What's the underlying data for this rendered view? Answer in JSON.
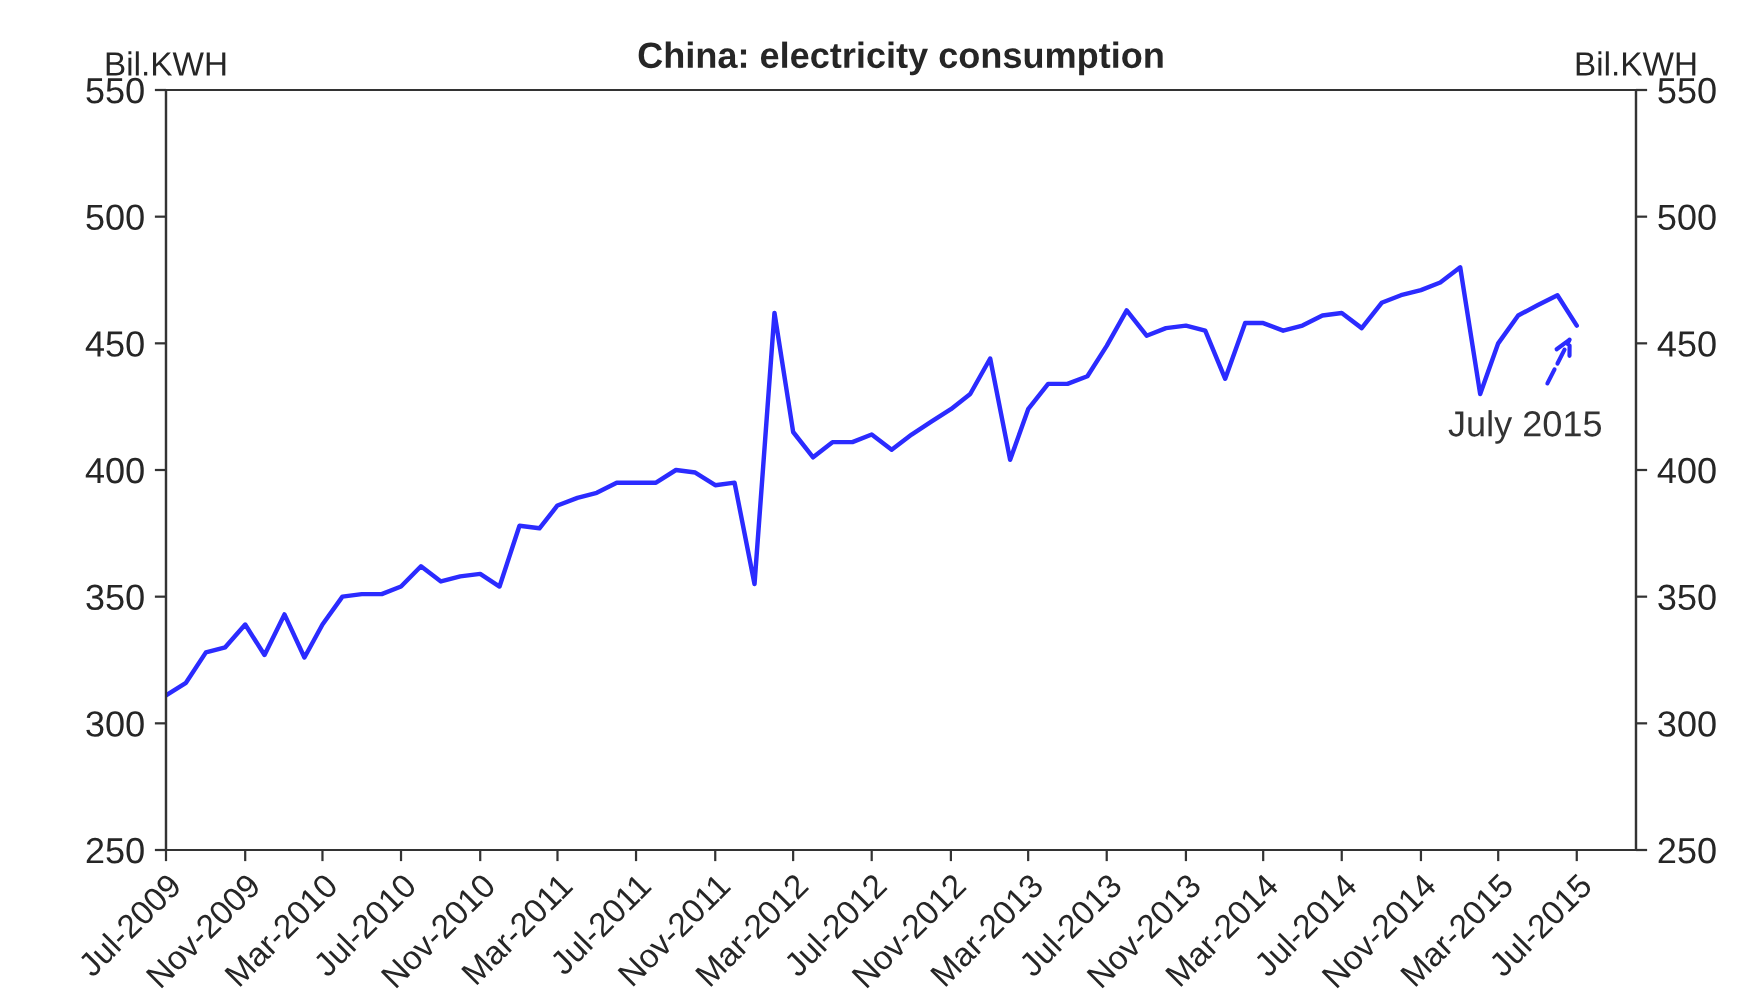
{
  "chart_data": {
    "type": "line",
    "title": "China: electricity consumption",
    "ylabel": "Bil.KWH",
    "y2label": "Bil.KWH",
    "x": [
      "2009-07",
      "2009-08",
      "2009-09",
      "2009-10",
      "2009-11",
      "2009-12",
      "2010-01",
      "2010-02",
      "2010-03",
      "2010-04",
      "2010-05",
      "2010-06",
      "2010-07",
      "2010-08",
      "2010-09",
      "2010-10",
      "2010-11",
      "2010-12",
      "2011-01",
      "2011-02",
      "2011-03",
      "2011-04",
      "2011-05",
      "2011-06",
      "2011-07",
      "2011-08",
      "2011-09",
      "2011-10",
      "2011-11",
      "2011-12",
      "2012-01",
      "2012-02",
      "2012-03",
      "2012-04",
      "2012-05",
      "2012-06",
      "2012-07",
      "2012-08",
      "2012-09",
      "2012-10",
      "2012-11",
      "2012-12",
      "2013-01",
      "2013-02",
      "2013-03",
      "2013-04",
      "2013-05",
      "2013-06",
      "2013-07",
      "2013-08",
      "2013-09",
      "2013-10",
      "2013-11",
      "2013-12",
      "2014-01",
      "2014-02",
      "2014-03",
      "2014-04",
      "2014-05",
      "2014-06",
      "2014-07",
      "2014-08",
      "2014-09",
      "2014-10",
      "2014-11",
      "2014-12",
      "2015-01",
      "2015-02",
      "2015-03",
      "2015-04",
      "2015-05",
      "2015-06",
      "2015-07"
    ],
    "series": [
      {
        "color": "#2b2bff",
        "values": [
          311,
          316,
          328,
          330,
          339,
          327,
          343,
          326,
          339,
          350,
          351,
          351,
          354,
          362,
          356,
          358,
          359,
          354,
          378,
          377,
          386,
          389,
          391,
          395,
          395,
          395,
          400,
          399,
          394,
          395,
          355,
          462,
          415,
          405,
          411,
          411,
          414,
          408,
          414,
          419,
          424,
          430,
          444,
          404,
          424,
          434,
          434,
          437,
          449,
          463,
          453,
          456,
          457,
          455,
          436,
          458,
          458,
          455,
          457,
          461,
          462,
          456,
          466,
          469,
          471,
          474,
          480,
          430,
          450,
          461,
          465,
          469,
          457
        ]
      }
    ],
    "xlim": [
      "2009-07",
      "2015-10"
    ],
    "xticks": [
      {
        "value": "2009-07",
        "label": "Jul-2009"
      },
      {
        "value": "2009-11",
        "label": "Nov-2009"
      },
      {
        "value": "2010-03",
        "label": "Mar-2010"
      },
      {
        "value": "2010-07",
        "label": "Jul-2010"
      },
      {
        "value": "2010-11",
        "label": "Nov-2010"
      },
      {
        "value": "2011-03",
        "label": "Mar-2011"
      },
      {
        "value": "2011-07",
        "label": "Jul-2011"
      },
      {
        "value": "2011-11",
        "label": "Nov-2011"
      },
      {
        "value": "2012-03",
        "label": "Mar-2012"
      },
      {
        "value": "2012-07",
        "label": "Jul-2012"
      },
      {
        "value": "2012-11",
        "label": "Nov-2012"
      },
      {
        "value": "2013-03",
        "label": "Mar-2013"
      },
      {
        "value": "2013-07",
        "label": "Jul-2013"
      },
      {
        "value": "2013-11",
        "label": "Nov-2013"
      },
      {
        "value": "2014-03",
        "label": "Mar-2014"
      },
      {
        "value": "2014-07",
        "label": "Jul-2014"
      },
      {
        "value": "2014-11",
        "label": "Nov-2014"
      },
      {
        "value": "2015-03",
        "label": "Mar-2015"
      },
      {
        "value": "2015-07",
        "label": "Jul-2015"
      }
    ],
    "ylim": [
      250,
      550
    ],
    "yticks": [
      250,
      300,
      350,
      400,
      450,
      500,
      550
    ],
    "y2lim": [
      250,
      550
    ],
    "y2ticks": [
      250,
      300,
      350,
      400,
      450,
      500,
      550
    ],
    "annotations": [
      {
        "text": "July 2015",
        "x": "2015-07",
        "y": 457
      }
    ],
    "grid": false,
    "legend": false,
    "marker": "none",
    "line_style": "solid"
  }
}
